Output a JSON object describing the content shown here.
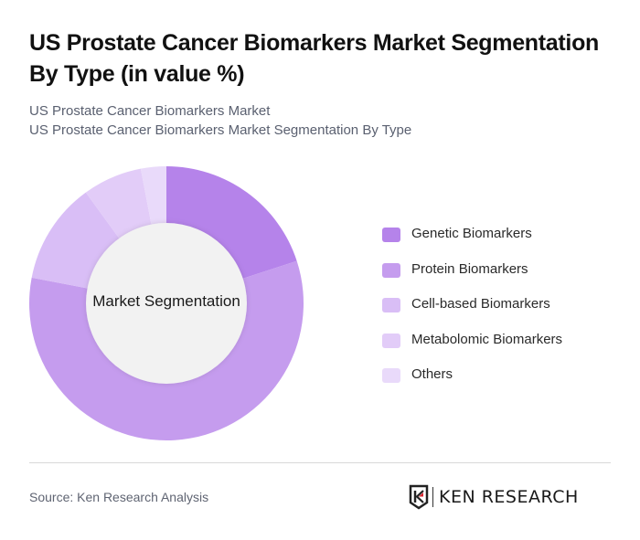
{
  "header": {
    "title": "US Prostate Cancer Biomarkers Market Segmentation By Type (in value %)",
    "subtitle_1": "US Prostate Cancer Biomarkers Market",
    "subtitle_2": "US Prostate Cancer Biomarkers Market Segmentation By Type"
  },
  "chart": {
    "center_label": "Market Segmentation",
    "center_color": "#F2F2F2"
  },
  "legend": {
    "items": [
      {
        "label": "Genetic Biomarkers",
        "color": "#B583EA"
      },
      {
        "label": "Protein Biomarkers",
        "color": "#C59CEE"
      },
      {
        "label": "Cell-based Biomarkers",
        "color": "#D9BEF6"
      },
      {
        "label": "Metabolomic Biomarkers",
        "color": "#E2CCF8"
      },
      {
        "label": "Others",
        "color": "#E9DAFA"
      }
    ]
  },
  "footer": {
    "source": "Source: Ken Research Analysis",
    "logo_text": "KEN RESEARCH"
  },
  "chart_data": {
    "type": "pie",
    "subtype": "donut",
    "title": "US Prostate Cancer Biomarkers Market Segmentation By Type (in value %)",
    "center_text": "Market Segmentation",
    "categories": [
      "Genetic Biomarkers",
      "Protein Biomarkers",
      "Cell-based Biomarkers",
      "Metabolomic Biomarkers",
      "Others"
    ],
    "values": [
      20,
      58,
      12,
      7,
      3
    ],
    "colors": [
      "#B583EA",
      "#C59CEE",
      "#D9BEF6",
      "#E2CCF8",
      "#E9DAFA"
    ],
    "unit": "%",
    "start_angle": "12 o'clock, clockwise",
    "legend_position": "right",
    "data_labels": false
  }
}
